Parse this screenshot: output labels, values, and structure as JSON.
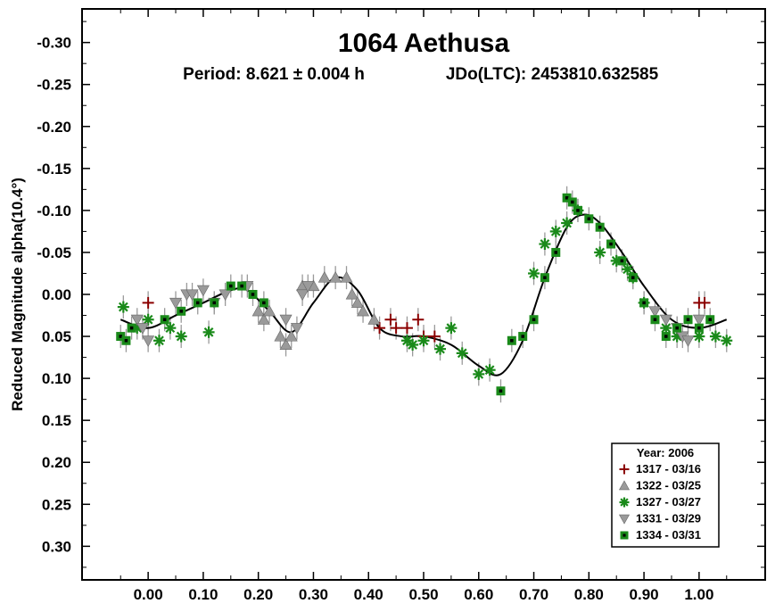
{
  "chart_data": {
    "type": "scatter",
    "title": "1064 Aethusa",
    "subtitle_period": "Period: 8.621 ± 0.004 h",
    "subtitle_epoch": "JDo(LTC): 2453810.632585",
    "xlabel": "",
    "ylabel": "Reduced Magnitude alpha(10.4°)",
    "xlim": [
      -0.12,
      1.12
    ],
    "ylim": [
      0.34,
      -0.34
    ],
    "y_inverted": true,
    "grid": false,
    "x_ticks": [
      0.0,
      0.1,
      0.2,
      0.3,
      0.4,
      0.5,
      0.6,
      0.7,
      0.8,
      0.9,
      1.0
    ],
    "x_tick_labels": [
      "0.00",
      "0.10",
      "0.20",
      "0.30",
      "0.40",
      "0.50",
      "0.60",
      "0.70",
      "0.80",
      "0.90",
      "1.00"
    ],
    "y_ticks": [
      -0.3,
      -0.25,
      -0.2,
      -0.15,
      -0.1,
      -0.05,
      0.0,
      0.05,
      0.1,
      0.15,
      0.2,
      0.25,
      0.3
    ],
    "y_tick_labels": [
      "-0.30",
      "-0.25",
      "-0.20",
      "-0.15",
      "-0.10",
      "-0.05",
      "0.00",
      "0.05",
      "0.10",
      "0.15",
      "0.20",
      "0.25",
      "0.30"
    ],
    "legend": {
      "title": "Year: 2006",
      "placement": "bottom-right"
    },
    "series": [
      {
        "name": "1317 - 03/16",
        "marker": "plus",
        "color": "#8b0000",
        "x": [
          0.0,
          0.42,
          0.44,
          0.45,
          0.47,
          0.49,
          0.5,
          0.52,
          1.0,
          1.01
        ],
        "y": [
          0.01,
          0.04,
          0.03,
          0.04,
          0.04,
          0.03,
          0.05,
          0.05,
          0.01,
          0.01
        ]
      },
      {
        "name": "1322 - 03/25",
        "marker": "triangle-up",
        "color": "#9a9a9a",
        "x": [
          0.2,
          0.21,
          0.22,
          0.24,
          0.25,
          0.26,
          0.28,
          0.3,
          0.32,
          0.34,
          0.36,
          0.37,
          0.38,
          0.39,
          0.41
        ],
        "y": [
          0.02,
          0.03,
          0.02,
          0.05,
          0.06,
          0.05,
          -0.01,
          -0.01,
          -0.02,
          -0.02,
          -0.02,
          0.0,
          0.01,
          0.02,
          0.03
        ]
      },
      {
        "name": "1327 - 03/27",
        "marker": "asterisk",
        "color": "#1a8a1a",
        "x": [
          -0.045,
          -0.02,
          0.0,
          0.02,
          0.04,
          0.06,
          0.11,
          0.47,
          0.48,
          0.5,
          0.53,
          0.55,
          0.57,
          0.6,
          0.62,
          0.7,
          0.72,
          0.74,
          0.76,
          0.78,
          0.82,
          0.85,
          0.87,
          0.88,
          0.9,
          0.94,
          0.96,
          1.0,
          1.03,
          1.05
        ],
        "y": [
          0.015,
          0.04,
          0.03,
          0.055,
          0.04,
          0.05,
          0.045,
          0.055,
          0.06,
          0.055,
          0.065,
          0.04,
          0.07,
          0.095,
          0.09,
          -0.025,
          -0.06,
          -0.075,
          -0.085,
          -0.1,
          -0.05,
          -0.04,
          -0.03,
          -0.02,
          0.01,
          0.04,
          0.05,
          0.05,
          0.05,
          0.055
        ]
      },
      {
        "name": "1331 - 03/29",
        "marker": "triangle-down",
        "color": "#9a9a9a",
        "x": [
          -0.02,
          -0.01,
          0.0,
          0.05,
          0.07,
          0.08,
          0.1,
          0.12,
          0.14,
          0.18,
          0.25,
          0.27,
          0.28,
          0.29,
          0.92,
          0.94,
          0.96,
          0.97,
          0.98,
          1.0
        ],
        "y": [
          0.03,
          0.04,
          0.055,
          0.01,
          0.0,
          0.0,
          -0.005,
          0.01,
          0.0,
          -0.01,
          0.03,
          0.04,
          0.0,
          -0.01,
          0.02,
          0.03,
          0.04,
          0.05,
          0.055,
          0.03
        ]
      },
      {
        "name": "1334 - 03/31",
        "marker": "square",
        "color": "#1a8a1a",
        "x": [
          -0.05,
          -0.04,
          -0.03,
          0.03,
          0.06,
          0.09,
          0.12,
          0.15,
          0.17,
          0.19,
          0.21,
          0.64,
          0.66,
          0.68,
          0.7,
          0.72,
          0.74,
          0.76,
          0.77,
          0.78,
          0.8,
          0.82,
          0.84,
          0.86,
          0.88,
          0.9,
          0.92,
          0.94,
          0.96,
          0.98,
          1.0,
          1.02
        ],
        "y": [
          0.05,
          0.055,
          0.04,
          0.03,
          0.02,
          0.01,
          0.01,
          -0.01,
          -0.01,
          0.0,
          0.01,
          0.115,
          0.055,
          0.05,
          0.03,
          -0.02,
          -0.05,
          -0.115,
          -0.11,
          -0.1,
          -0.09,
          -0.08,
          -0.06,
          -0.04,
          -0.02,
          0.01,
          0.03,
          0.05,
          0.04,
          0.03,
          0.04,
          0.03
        ]
      }
    ],
    "fit_curve": {
      "x": [
        -0.05,
        0.0,
        0.05,
        0.1,
        0.15,
        0.18,
        0.22,
        0.26,
        0.3,
        0.34,
        0.38,
        0.42,
        0.46,
        0.5,
        0.55,
        0.6,
        0.64,
        0.68,
        0.72,
        0.76,
        0.79,
        0.82,
        0.86,
        0.9,
        0.95,
        1.0,
        1.05
      ],
      "y": [
        0.03,
        0.04,
        0.025,
        0.01,
        -0.005,
        -0.005,
        0.02,
        0.045,
        0.01,
        -0.02,
        -0.005,
        0.04,
        0.05,
        0.05,
        0.06,
        0.085,
        0.095,
        0.055,
        -0.02,
        -0.08,
        -0.095,
        -0.085,
        -0.05,
        -0.01,
        0.03,
        0.04,
        0.03
      ]
    }
  }
}
